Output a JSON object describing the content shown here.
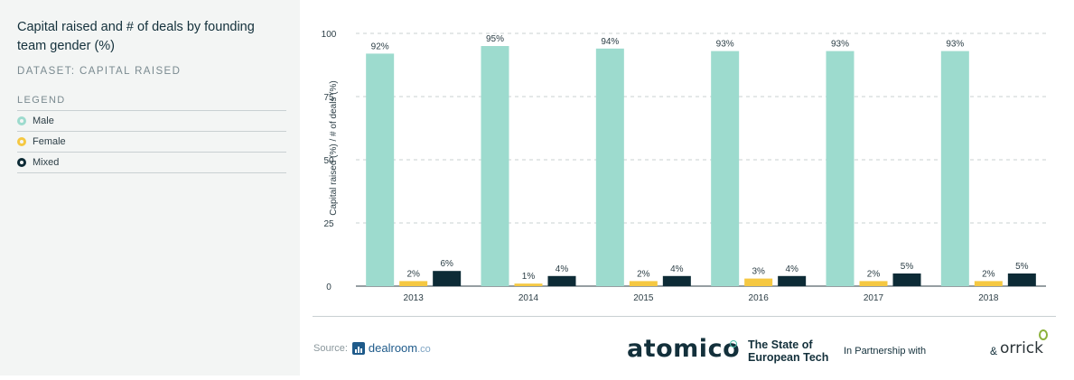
{
  "sidebar": {
    "title": "Capital raised and # of deals by founding team gender (%)",
    "dataset_label": "DATASET: CAPITAL RAISED",
    "legend_heading": "LEGEND",
    "legend": [
      {
        "label": "Male",
        "color": "#9ddbce"
      },
      {
        "label": "Female",
        "color": "#f5c842"
      },
      {
        "label": "Mixed",
        "color": "#0d2b36"
      }
    ]
  },
  "chart_data": {
    "type": "bar",
    "categories": [
      "2013",
      "2014",
      "2015",
      "2016",
      "2017",
      "2018"
    ],
    "series": [
      {
        "name": "Male",
        "color": "#9ddbce",
        "values": [
          92,
          95,
          94,
          93,
          93,
          93
        ],
        "labels": [
          "92%",
          "95%",
          "94%",
          "93%",
          "93%",
          "93%"
        ]
      },
      {
        "name": "Female",
        "color": "#f5c842",
        "values": [
          2,
          1,
          2,
          3,
          2,
          2
        ],
        "labels": [
          "2%",
          "1%",
          "2%",
          "3%",
          "2%",
          "2%"
        ]
      },
      {
        "name": "Mixed",
        "color": "#0d2b36",
        "values": [
          6,
          4,
          4,
          4,
          5,
          5
        ],
        "labels": [
          "6%",
          "4%",
          "4%",
          "4%",
          "5%",
          "5%"
        ]
      }
    ],
    "ylabel": "Capital raised (%) / # of deals (%)",
    "xlabel": "",
    "ylim": [
      0,
      100
    ],
    "yticks": [
      0,
      25,
      50,
      75,
      100
    ],
    "grid": true
  },
  "footer": {
    "source_label": "Source:",
    "source_name": "dealroom",
    "source_suffix": ".co",
    "brand": "atomico",
    "report_line1": "The State of",
    "report_line2": "European Tech",
    "partnership": "In Partnership with",
    "amp": "&",
    "partner_brand": "orrick"
  }
}
